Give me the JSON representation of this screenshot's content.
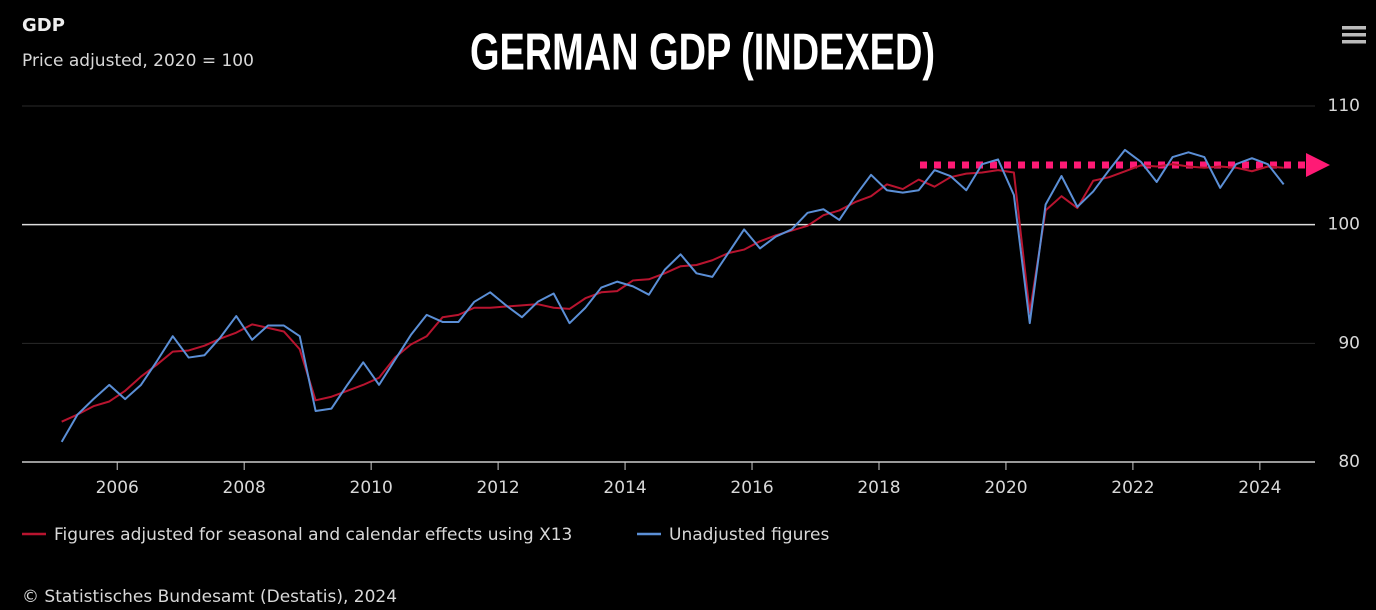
{
  "chart_data": {
    "type": "line",
    "title": "GERMAN GDP (INDEXED)",
    "header": "GDP",
    "subtitle": "Price adjusted, 2020 = 100",
    "source": "© Statistisches Bundesamt (Destatis), 2024",
    "x": [
      2005.125,
      2005.375,
      2005.625,
      2005.875,
      2006.125,
      2006.375,
      2006.625,
      2006.875,
      2007.125,
      2007.375,
      2007.625,
      2007.875,
      2008.125,
      2008.375,
      2008.625,
      2008.875,
      2009.125,
      2009.375,
      2009.625,
      2009.875,
      2010.125,
      2010.375,
      2010.625,
      2010.875,
      2011.125,
      2011.375,
      2011.625,
      2011.875,
      2012.125,
      2012.375,
      2012.625,
      2012.875,
      2013.125,
      2013.375,
      2013.625,
      2013.875,
      2014.125,
      2014.375,
      2014.625,
      2014.875,
      2015.125,
      2015.375,
      2015.625,
      2015.875,
      2016.125,
      2016.375,
      2016.625,
      2016.875,
      2017.125,
      2017.375,
      2017.625,
      2017.875,
      2018.125,
      2018.375,
      2018.625,
      2018.875,
      2019.125,
      2019.375,
      2019.625,
      2019.875,
      2020.125,
      2020.375,
      2020.625,
      2020.875,
      2021.125,
      2021.375,
      2021.625,
      2021.875,
      2022.125,
      2022.375,
      2022.625,
      2022.875,
      2023.125,
      2023.375,
      2023.625,
      2023.875,
      2024.125,
      2024.375
    ],
    "series": [
      {
        "name": "Figures adjusted for seasonal and calendar effects using X13",
        "color": "#b8142f",
        "values": [
          83.4,
          84.0,
          84.7,
          85.1,
          86.0,
          87.2,
          88.2,
          89.3,
          89.4,
          89.8,
          90.4,
          90.9,
          91.6,
          91.3,
          91.0,
          89.5,
          85.2,
          85.5,
          86.0,
          86.5,
          87.1,
          88.8,
          89.9,
          90.6,
          92.2,
          92.4,
          93.0,
          93.0,
          93.1,
          93.2,
          93.3,
          93.0,
          92.9,
          93.8,
          94.3,
          94.4,
          95.3,
          95.4,
          95.9,
          96.5,
          96.6,
          97.0,
          97.6,
          97.9,
          98.6,
          99.1,
          99.5,
          99.9,
          100.8,
          101.2,
          101.9,
          102.4,
          103.4,
          103.0,
          103.8,
          103.2,
          104.0,
          104.3,
          104.4,
          104.6,
          104.4,
          92.6,
          101.2,
          102.4,
          101.4,
          103.7,
          104.0,
          104.5,
          105.0,
          104.9,
          105.1,
          104.9,
          104.8,
          104.9,
          104.8,
          104.5,
          104.9,
          104.8
        ]
      },
      {
        "name": "Unadjusted figures",
        "color": "#5b8fd6",
        "values": [
          81.7,
          84.0,
          85.3,
          86.5,
          85.3,
          86.5,
          88.5,
          90.6,
          88.8,
          89.0,
          90.5,
          92.3,
          90.3,
          91.5,
          91.5,
          90.6,
          84.3,
          84.5,
          86.5,
          88.4,
          86.5,
          88.6,
          90.7,
          92.4,
          91.8,
          91.8,
          93.5,
          94.3,
          93.2,
          92.2,
          93.5,
          94.2,
          91.7,
          93.0,
          94.7,
          95.2,
          94.8,
          94.1,
          96.2,
          97.5,
          95.9,
          95.6,
          97.6,
          99.6,
          98.0,
          99.0,
          99.6,
          101.0,
          101.3,
          100.4,
          102.4,
          104.2,
          102.9,
          102.7,
          102.9,
          104.6,
          104.1,
          102.9,
          105.1,
          105.5,
          102.5,
          91.7,
          101.7,
          104.1,
          101.5,
          102.8,
          104.6,
          106.3,
          105.3,
          103.6,
          105.7,
          106.1,
          105.7,
          103.1,
          105.1,
          105.6,
          105.1,
          103.4
        ]
      }
    ],
    "xlim": [
      2004.5,
      2024.9
    ],
    "xticks": [
      2006,
      2008,
      2010,
      2012,
      2014,
      2016,
      2018,
      2020,
      2022,
      2024
    ],
    "ylim": [
      80,
      110
    ],
    "yticks": [
      80,
      90,
      100,
      110
    ],
    "reference_line": 100,
    "grid": true
  }
}
